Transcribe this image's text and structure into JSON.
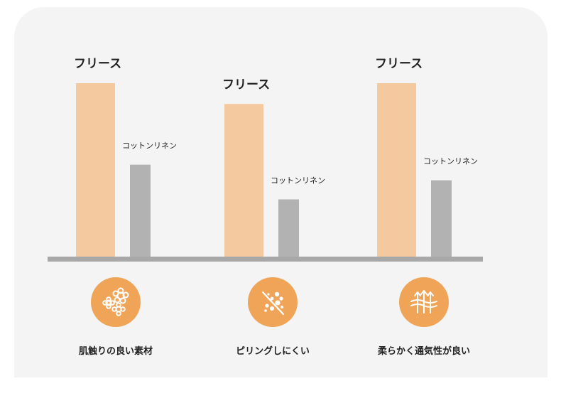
{
  "chart_data": {
    "type": "bar",
    "categories": [
      "肌触りの良い素材",
      "ピリングしにくい",
      "柔らかく通気性が良い"
    ],
    "series": [
      {
        "name": "フリース",
        "values": [
          100,
          88,
          100
        ],
        "color": "#f5c9a0"
      },
      {
        "name": "コットンリネン",
        "values": [
          53,
          33,
          44
        ],
        "color": "#b2b2b2"
      }
    ],
    "title": "",
    "xlabel": "",
    "ylabel": "",
    "ylim": [
      0,
      100
    ],
    "grid": false,
    "legend": "none",
    "baseline_color": "#a8a8a8"
  },
  "features": [
    {
      "label": "肌触りの良い素材",
      "icon": "flowers-icon"
    },
    {
      "label": "ピリングしにくい",
      "icon": "no-pilling-icon"
    },
    {
      "label": "柔らかく通気性が良い",
      "icon": "airflow-arrows-icon"
    }
  ],
  "colors": {
    "panel_background": "#f4f4f4",
    "icon_circle": "#f0a458",
    "icon_line": "#ffffff"
  }
}
